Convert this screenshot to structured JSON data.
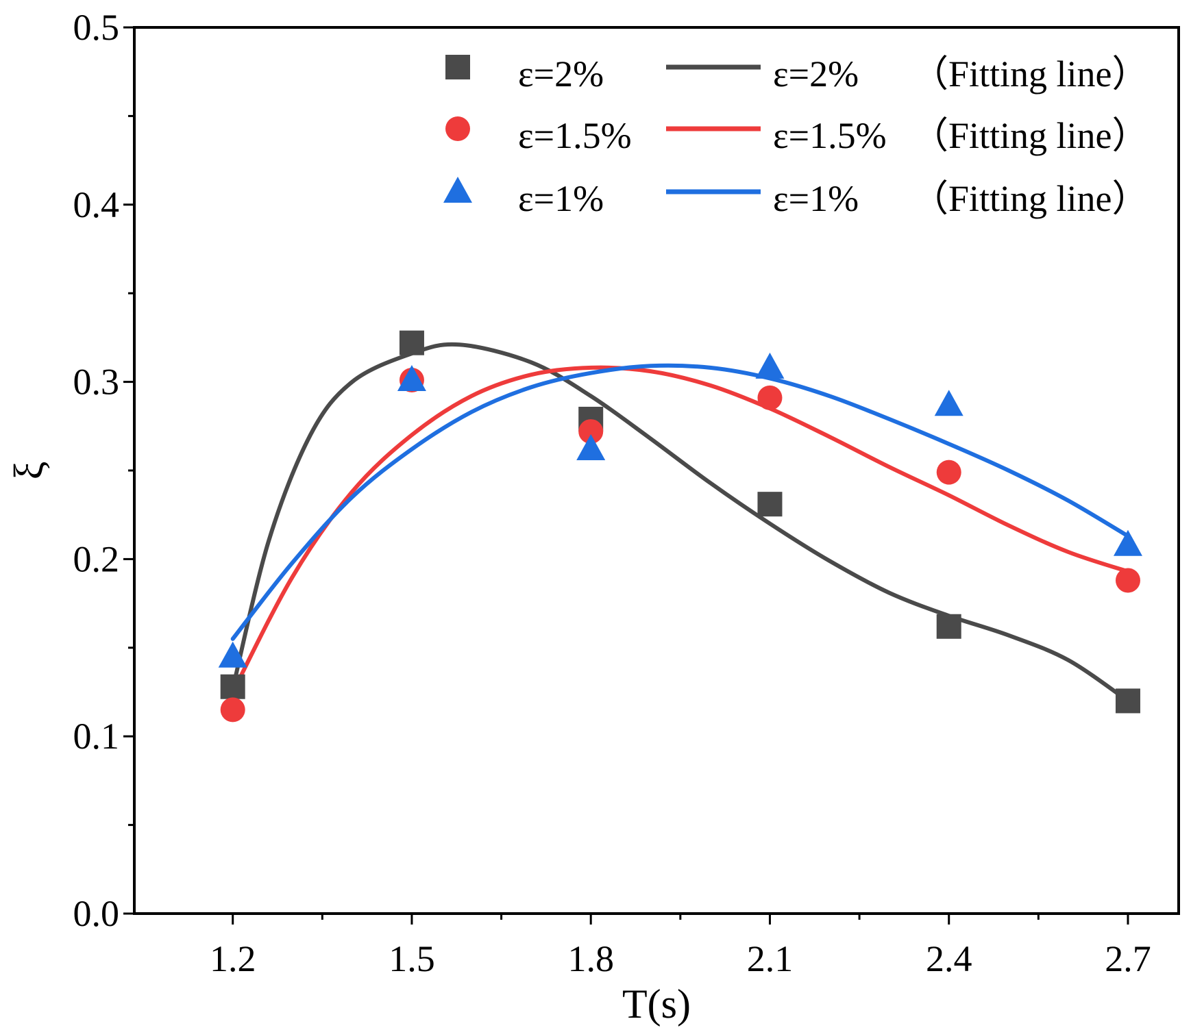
{
  "chart_data": {
    "type": "scatter",
    "title": "",
    "xlabel": "T(s)",
    "ylabel": "ξ",
    "xlim": [
      1.035,
      2.785
    ],
    "ylim": [
      0.0,
      0.5
    ],
    "x_ticks": [
      "1.2",
      "1.5",
      "1.8",
      "2.1",
      "2.4",
      "2.7"
    ],
    "y_ticks": [
      "0.0",
      "0.1",
      "0.2",
      "0.3",
      "0.4",
      "0.5"
    ],
    "grid": false,
    "legend_position": "top-right",
    "series": [
      {
        "name": "ε=2%",
        "fit_name": "ε=2%",
        "fit_suffix": "（Fitting line）",
        "color": "#4a4a4a",
        "marker": "square",
        "x": [
          1.2,
          1.5,
          1.8,
          2.1,
          2.4,
          2.7
        ],
        "values": [
          0.128,
          0.322,
          0.279,
          0.231,
          0.162,
          0.12
        ],
        "fit": [
          [
            1.2,
            0.127
          ],
          [
            1.26,
            0.21
          ],
          [
            1.33,
            0.27
          ],
          [
            1.4,
            0.3
          ],
          [
            1.5,
            0.316
          ],
          [
            1.58,
            0.321
          ],
          [
            1.7,
            0.311
          ],
          [
            1.8,
            0.292
          ],
          [
            1.9,
            0.268
          ],
          [
            2.0,
            0.243
          ],
          [
            2.1,
            0.22
          ],
          [
            2.2,
            0.199
          ],
          [
            2.3,
            0.181
          ],
          [
            2.4,
            0.168
          ],
          [
            2.5,
            0.157
          ],
          [
            2.6,
            0.143
          ],
          [
            2.7,
            0.12
          ]
        ]
      },
      {
        "name": "ε=1.5%",
        "fit_name": "ε=1.5%",
        "fit_suffix": "（Fitting line）",
        "color": "#ee3b3b",
        "marker": "circle",
        "x": [
          1.2,
          1.5,
          1.8,
          2.1,
          2.4,
          2.7
        ],
        "values": [
          0.115,
          0.301,
          0.272,
          0.291,
          0.249,
          0.188
        ],
        "fit": [
          [
            1.2,
            0.125
          ],
          [
            1.3,
            0.19
          ],
          [
            1.4,
            0.238
          ],
          [
            1.5,
            0.27
          ],
          [
            1.6,
            0.292
          ],
          [
            1.7,
            0.304
          ],
          [
            1.8,
            0.308
          ],
          [
            1.9,
            0.306
          ],
          [
            2.0,
            0.298
          ],
          [
            2.1,
            0.285
          ],
          [
            2.2,
            0.269
          ],
          [
            2.3,
            0.252
          ],
          [
            2.4,
            0.236
          ],
          [
            2.5,
            0.219
          ],
          [
            2.6,
            0.204
          ],
          [
            2.7,
            0.193
          ]
        ]
      },
      {
        "name": "ε=1%",
        "fit_name": "ε=1%",
        "fit_suffix": "（Fitting line）",
        "color": "#1f6fe0",
        "marker": "triangle",
        "x": [
          1.2,
          1.5,
          1.8,
          2.1,
          2.4,
          2.7
        ],
        "values": [
          0.145,
          0.301,
          0.262,
          0.308,
          0.287,
          0.208
        ],
        "fit": [
          [
            1.2,
            0.155
          ],
          [
            1.3,
            0.198
          ],
          [
            1.4,
            0.235
          ],
          [
            1.5,
            0.262
          ],
          [
            1.6,
            0.283
          ],
          [
            1.7,
            0.297
          ],
          [
            1.8,
            0.305
          ],
          [
            1.9,
            0.309
          ],
          [
            2.0,
            0.308
          ],
          [
            2.1,
            0.302
          ],
          [
            2.2,
            0.292
          ],
          [
            2.3,
            0.279
          ],
          [
            2.4,
            0.265
          ],
          [
            2.5,
            0.25
          ],
          [
            2.6,
            0.233
          ],
          [
            2.7,
            0.213
          ]
        ]
      }
    ]
  }
}
